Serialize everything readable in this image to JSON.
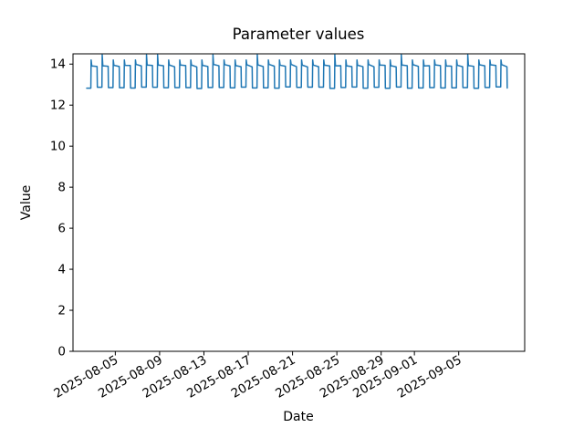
{
  "chart_data": {
    "type": "line",
    "title": "Parameter values",
    "xlabel": "Date",
    "ylabel": "Value",
    "background_color": "#ffffff",
    "line": {
      "color": "#1f77b4",
      "width": 1.5
    },
    "axes": {
      "grid": false,
      "boxed_spines": true,
      "ylim": [
        0,
        14.5
      ],
      "y_ticks": [
        0,
        2,
        4,
        6,
        8,
        10,
        12,
        14
      ],
      "x_tick_labels": [
        "2025-08-05",
        "2025-08-09",
        "2025-08-13",
        "2025-08-17",
        "2025-08-21",
        "2025-08-25",
        "2025-08-29",
        "2025-09-01",
        "2025-09-05"
      ],
      "x_tick_day_offsets": [
        2.5833,
        6.5833,
        10.5833,
        14.5833,
        18.5833,
        22.5833,
        26.5833,
        29.5833,
        33.5833
      ],
      "x_tick_rotation_deg": 30
    },
    "x_range": {
      "start": "2025-08-02 10:00",
      "end": "2025-09-09 09:12",
      "total_hours": 911.2,
      "num_days": 38
    },
    "series": [
      {
        "name": "Parameter",
        "description": "Daily square-wave cycle: overnight low, sharp morning rise to a brief peak, long plateau, sharp evening fall",
        "daily_pattern": {
          "period_hours": 24,
          "low_value": 12.85,
          "rise_start_hour": 9.0,
          "peak_hour": 9.6,
          "plateau_start_hour": 11.0,
          "plateau_value": 13.95,
          "plateau_end_hour": 22.5,
          "plateau_end_value": 13.9,
          "fall_end_hour": 23.1,
          "normal_peak_value": 14.2,
          "spike_peak_value": 14.45
        },
        "spike_day_indices": [
          1,
          5,
          6,
          11,
          15,
          22,
          28,
          34
        ],
        "daily_peak_values": [
          14.2,
          14.45,
          14.2,
          14.2,
          14.2,
          14.45,
          14.45,
          14.2,
          14.2,
          14.2,
          14.2,
          14.45,
          14.2,
          14.2,
          14.2,
          14.45,
          14.2,
          14.2,
          14.2,
          14.2,
          14.2,
          14.2,
          14.45,
          14.2,
          14.2,
          14.2,
          14.2,
          14.2,
          14.45,
          14.2,
          14.2,
          14.2,
          14.2,
          14.2,
          14.45,
          14.2,
          14.2,
          14.2
        ],
        "jitter_amplitude": 0.04
      }
    ]
  }
}
